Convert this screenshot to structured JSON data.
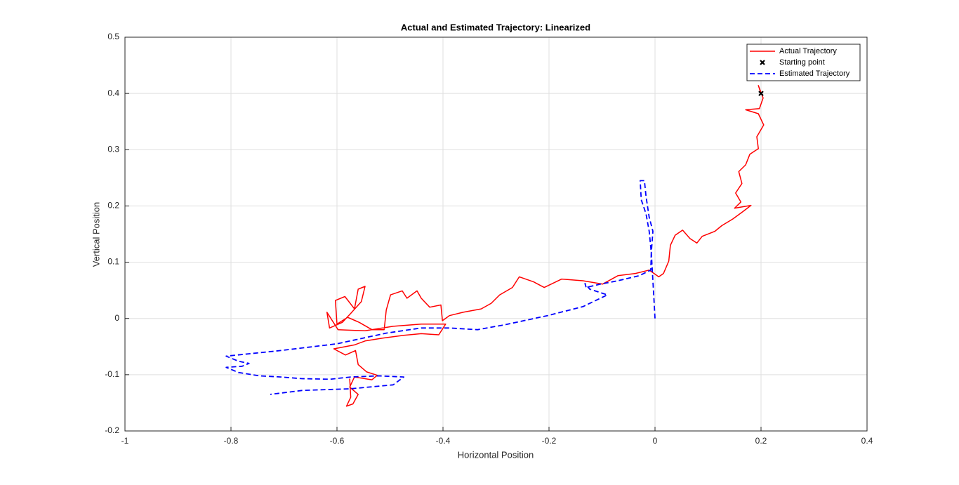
{
  "chart_data": {
    "type": "line",
    "title": "Actual and Estimated Trajectory: Linearized",
    "xlabel": "Horizontal Position",
    "ylabel": "Vertical Position",
    "xlim": [
      -1,
      0.4
    ],
    "xticks": [
      -1,
      -0.8,
      -0.6,
      -0.4,
      -0.2,
      0,
      0.2,
      0.4
    ],
    "ylim": [
      -0.2,
      0.5
    ],
    "yticks": [
      -0.2,
      -0.1,
      0,
      0.1,
      0.2,
      0.3,
      0.4,
      0.5
    ],
    "grid": true,
    "legend": "northeast",
    "series": [
      {
        "name": "Actual Trajectory",
        "color": "#ff0000",
        "style": "solid",
        "x": [
          0.2,
          0.195,
          0.204,
          0.197,
          0.171,
          0.195,
          0.205,
          0.192,
          0.195,
          0.179,
          0.171,
          0.158,
          0.164,
          0.152,
          0.162,
          0.15,
          0.181,
          0.166,
          0.147,
          0.126,
          0.113,
          0.089,
          0.079,
          0.066,
          0.052,
          0.038,
          0.029,
          0.026,
          0.016,
          0.007,
          -0.011,
          -0.037,
          -0.07,
          -0.099,
          -0.136,
          -0.176,
          -0.209,
          -0.229,
          -0.256,
          -0.269,
          -0.293,
          -0.309,
          -0.328,
          -0.362,
          -0.388,
          -0.401,
          -0.404,
          -0.425,
          -0.441,
          -0.449,
          -0.468,
          -0.477,
          -0.499,
          -0.507,
          -0.511,
          -0.534,
          -0.558,
          -0.58,
          -0.6,
          -0.603,
          -0.585,
          -0.567,
          -0.56,
          -0.547,
          -0.554,
          -0.574,
          -0.59,
          -0.614,
          -0.619,
          -0.598,
          -0.547,
          -0.494,
          -0.441,
          -0.395,
          -0.408,
          -0.441,
          -0.474,
          -0.514,
          -0.547,
          -0.567,
          -0.606,
          -0.584,
          -0.565,
          -0.56,
          -0.544,
          -0.524,
          -0.534,
          -0.567,
          -0.576,
          -0.56,
          -0.57,
          -0.582,
          -0.574,
          -0.576
        ],
        "y": [
          0.4,
          0.414,
          0.392,
          0.373,
          0.371,
          0.364,
          0.344,
          0.323,
          0.302,
          0.292,
          0.273,
          0.261,
          0.24,
          0.223,
          0.207,
          0.196,
          0.201,
          0.19,
          0.177,
          0.165,
          0.155,
          0.146,
          0.134,
          0.142,
          0.157,
          0.148,
          0.13,
          0.102,
          0.08,
          0.074,
          0.086,
          0.08,
          0.076,
          0.061,
          0.067,
          0.07,
          0.055,
          0.065,
          0.074,
          0.055,
          0.042,
          0.027,
          0.017,
          0.011,
          0.005,
          -0.004,
          0.024,
          0.02,
          0.036,
          0.049,
          0.036,
          0.049,
          0.042,
          0.015,
          -0.02,
          -0.02,
          -0.007,
          0.002,
          -0.01,
          0.032,
          0.039,
          0.017,
          0.052,
          0.057,
          0.03,
          0.009,
          -0.007,
          -0.017,
          0.011,
          -0.02,
          -0.022,
          -0.014,
          -0.01,
          -0.01,
          -0.029,
          -0.027,
          -0.03,
          -0.035,
          -0.04,
          -0.047,
          -0.054,
          -0.065,
          -0.057,
          -0.082,
          -0.095,
          -0.101,
          -0.109,
          -0.104,
          -0.122,
          -0.135,
          -0.152,
          -0.156,
          -0.14,
          -0.107
        ]
      },
      {
        "name": "Starting point",
        "color": "#000000",
        "style": "marker",
        "x": [
          0.2
        ],
        "y": [
          0.4
        ]
      },
      {
        "name": "Estimated Trajectory",
        "color": "#0000ff",
        "style": "dashed",
        "x": [
          0,
          -0.004,
          -0.007,
          -0.004,
          -0.011,
          -0.017,
          -0.02,
          -0.028,
          -0.026,
          -0.017,
          -0.011,
          -0.007,
          -0.008,
          -0.03,
          -0.07,
          -0.103,
          -0.13,
          -0.132,
          -0.123,
          -0.09,
          -0.136,
          -0.203,
          -0.282,
          -0.335,
          -0.388,
          -0.441,
          -0.507,
          -0.6,
          -0.706,
          -0.809,
          -0.786,
          -0.766,
          -0.779,
          -0.809,
          -0.786,
          -0.746,
          -0.706,
          -0.666,
          -0.613,
          -0.574,
          -0.521,
          -0.474,
          -0.494,
          -0.574,
          -0.666,
          -0.726
        ],
        "y": [
          0,
          0.067,
          0.117,
          0.155,
          0.18,
          0.217,
          0.245,
          0.245,
          0.211,
          0.186,
          0.155,
          0.117,
          0.086,
          0.076,
          0.067,
          0.061,
          0.055,
          0.062,
          0.052,
          0.042,
          0.021,
          0.005,
          -0.011,
          -0.02,
          -0.017,
          -0.017,
          -0.026,
          -0.045,
          -0.057,
          -0.067,
          -0.076,
          -0.08,
          -0.085,
          -0.087,
          -0.096,
          -0.102,
          -0.104,
          -0.107,
          -0.108,
          -0.104,
          -0.102,
          -0.104,
          -0.118,
          -0.125,
          -0.128,
          -0.135
        ]
      }
    ]
  }
}
